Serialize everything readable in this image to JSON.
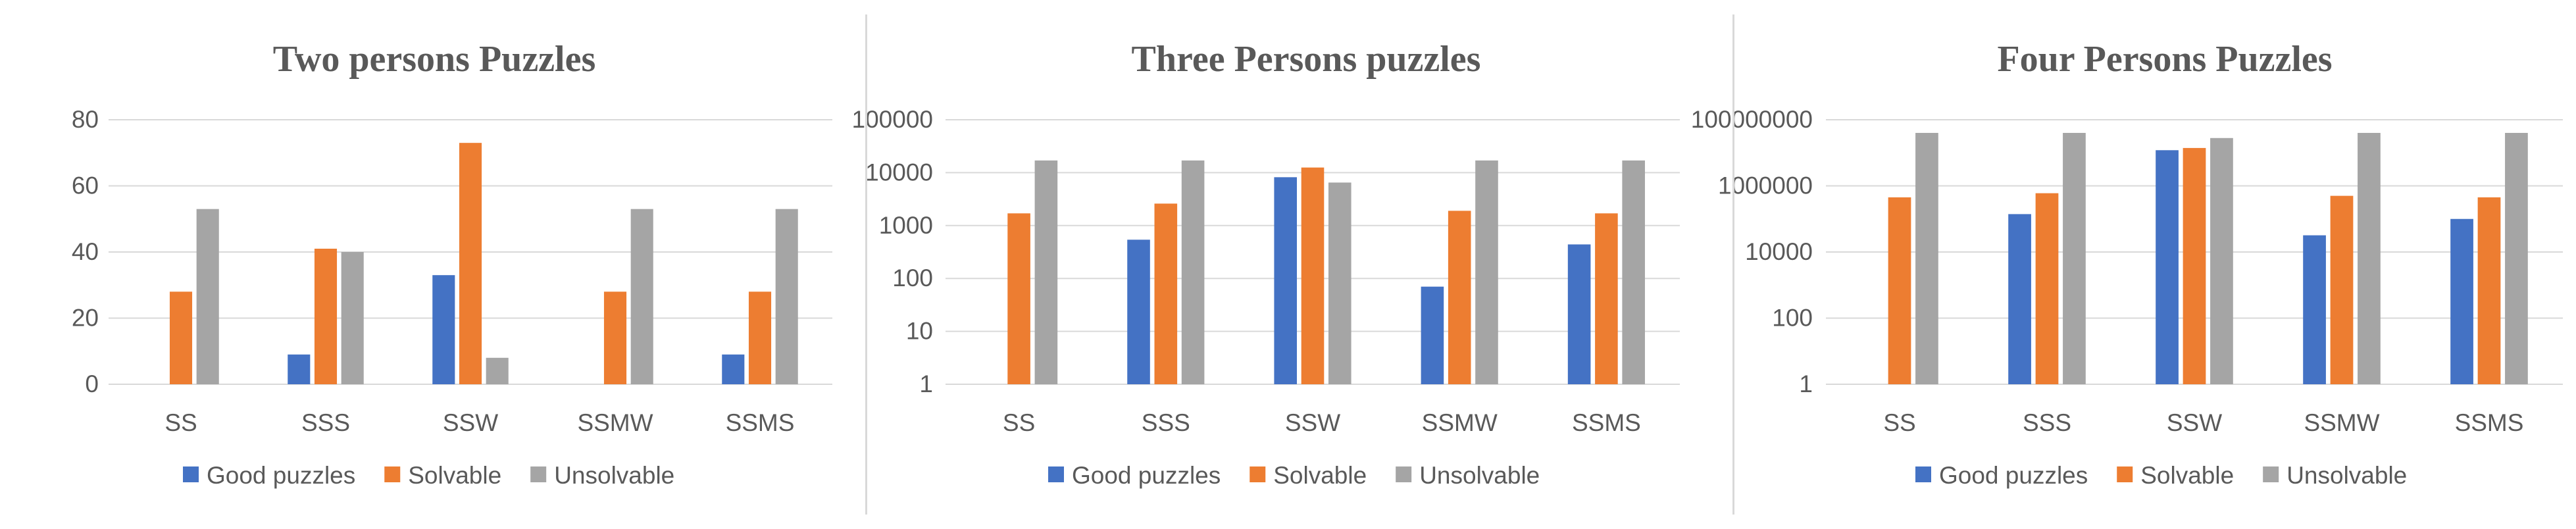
{
  "colors": {
    "good": "#4472C4",
    "solvable": "#ED7D31",
    "unsolvable": "#A5A5A5",
    "grid": "#d9d9d9",
    "text": "#595959"
  },
  "chart_data": [
    {
      "type": "bar",
      "title": "Two persons Puzzles",
      "categories": [
        "SS",
        "SSS",
        "SSW",
        "SSMW",
        "SSMS"
      ],
      "yscale": "linear",
      "ylim": [
        0,
        80
      ],
      "yticks": [
        0,
        20,
        40,
        60,
        80
      ],
      "ytick_labels": [
        "0",
        "20",
        "40",
        "60",
        "80"
      ],
      "grid": true,
      "legend_position": "bottom",
      "series": [
        {
          "name": "Good puzzles",
          "values": [
            0,
            9,
            33,
            0,
            9
          ]
        },
        {
          "name": "Solvable",
          "values": [
            28,
            41,
            73,
            28,
            28
          ]
        },
        {
          "name": "Unsolvable",
          "values": [
            53,
            40,
            8,
            53,
            53
          ]
        }
      ]
    },
    {
      "type": "bar",
      "title": "Three Persons puzzles",
      "categories": [
        "SS",
        "SSS",
        "SSW",
        "SSMW",
        "SSMS"
      ],
      "yscale": "log",
      "ylim": [
        1,
        100000
      ],
      "yticks": [
        1,
        10,
        100,
        1000,
        10000,
        100000
      ],
      "ytick_labels": [
        "1",
        "10",
        "100",
        "1000",
        "10000",
        "100000"
      ],
      "grid": true,
      "legend_position": "bottom",
      "series": [
        {
          "name": "Good puzzles",
          "values": [
            1,
            540,
            8200,
            70,
            440
          ]
        },
        {
          "name": "Solvable",
          "values": [
            1700,
            2600,
            12500,
            1900,
            1700
          ]
        },
        {
          "name": "Unsolvable",
          "values": [
            17000,
            17000,
            6500,
            17000,
            17000
          ]
        }
      ]
    },
    {
      "type": "bar",
      "title": "Four Persons Puzzles",
      "categories": [
        "SS",
        "SSS",
        "SSW",
        "SSMW",
        "SSMS"
      ],
      "yscale": "log",
      "ylim": [
        1,
        100000000
      ],
      "yticks": [
        1,
        100,
        10000,
        1000000,
        100000000
      ],
      "ytick_labels": [
        "1",
        "100",
        "10000",
        "1000000",
        "100000000"
      ],
      "grid": true,
      "legend_position": "bottom",
      "series": [
        {
          "name": "Good puzzles",
          "values": [
            1,
            140000,
            12000000,
            32000,
            100000
          ]
        },
        {
          "name": "Solvable",
          "values": [
            450000,
            600000,
            14000000,
            500000,
            450000
          ]
        },
        {
          "name": "Unsolvable",
          "values": [
            40000000,
            40000000,
            28000000,
            40000000,
            40000000
          ]
        }
      ]
    }
  ]
}
